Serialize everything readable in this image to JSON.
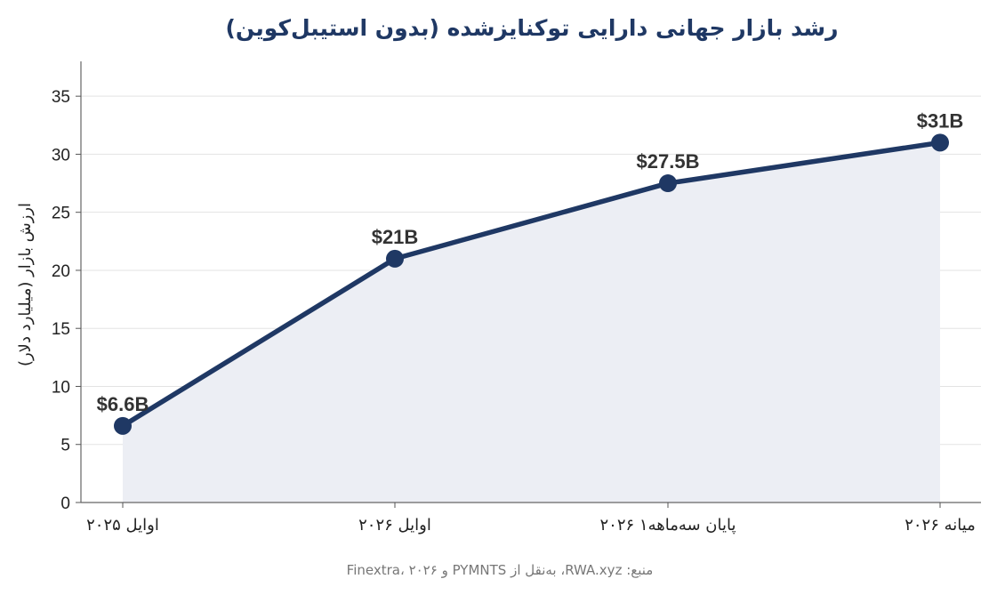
{
  "chart_data": {
    "type": "area",
    "title": "رشد بازار جهانی دارایی توکنایزشده (بدون استیبل‌کوین)",
    "ylabel": "ارزش بازار (میلیارد دلار)",
    "xlabel": "",
    "categories": [
      "اوایل ۲۰۲۵",
      "اوایل ۲۰۲۶",
      "پایان سه‌ماهه۱ ۲۰۲۶",
      "میانه ۲۰۲۶"
    ],
    "values": [
      6.6,
      21,
      27.5,
      31
    ],
    "data_labels": [
      "$6.6B",
      "$21B",
      "$27.5B",
      "$31B"
    ],
    "ylim": [
      0,
      38
    ],
    "yticks": [
      0,
      5,
      10,
      15,
      20,
      25,
      30,
      35
    ],
    "grid": true,
    "source": "منبع: RWA.xyz، به‌نقل از PYMNTS و ۲۰۲۶ ،Finextra",
    "colors": {
      "line": "#1f3864",
      "fill": "#eceef4",
      "grid": "#e3e3e3",
      "title": "#1f3864"
    }
  }
}
